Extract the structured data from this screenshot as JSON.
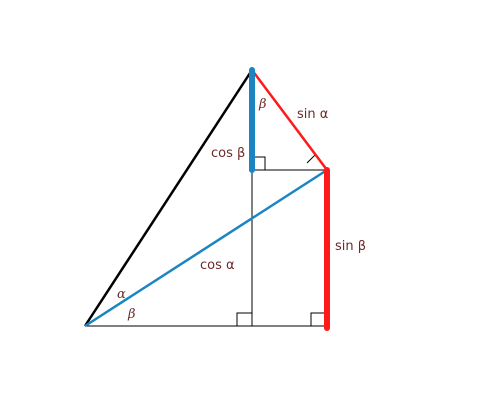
{
  "labels": {
    "sin_alpha": "sin α",
    "cos_beta": "cos β",
    "sin_beta": "sin β",
    "cos_alpha": "cos α",
    "alpha": "α",
    "beta_bottom": "β",
    "beta_top": "β"
  },
  "colors": {
    "background": "#ffffff",
    "black_line": "#000000",
    "blue_line": "#1a85c2",
    "red_line": "#ff1a1a",
    "label_text": "#6b2b2b"
  }
}
